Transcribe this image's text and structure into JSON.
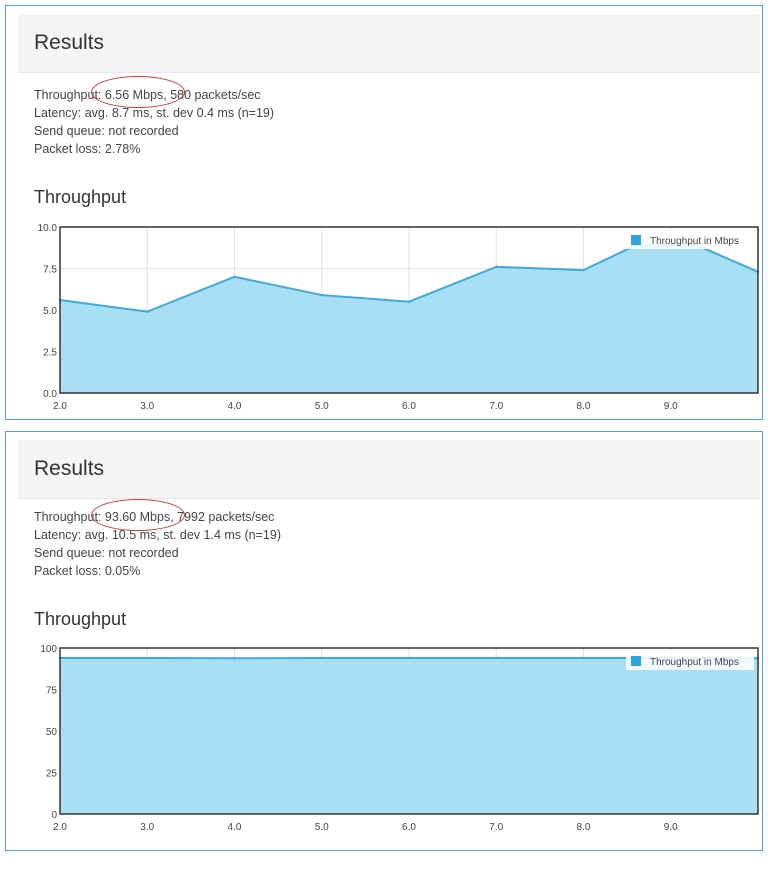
{
  "panels": [
    {
      "title": "Results",
      "stats": {
        "throughput": "Throughput: 6.56 Mbps, 580 packets/sec",
        "latency": "Latency: avg. 8.7 ms, st. dev 0.4 ms (n=19)",
        "send_queue": "Send queue: not recorded",
        "packet_loss": "Packet loss: 2.78%"
      },
      "chart_title": "Throughput"
    },
    {
      "title": "Results",
      "stats": {
        "throughput": "Throughput: 93.60 Mbps, 7992 packets/sec",
        "latency": "Latency: avg. 10.5 ms, st. dev 1.4 ms (n=19)",
        "send_queue": "Send queue: not recorded",
        "packet_loss": "Packet loss: 0.05%"
      },
      "chart_title": "Throughput"
    }
  ],
  "colors": {
    "fill": "#a8dff5",
    "line": "#3fa9d9",
    "legend": "#2aa6dc",
    "border": "#4aa8d8",
    "annotation": "#d23a3a"
  },
  "chart_data": [
    {
      "type": "area",
      "series": [
        {
          "name": "Throughput in Mbps",
          "x": [
            2.0,
            3.0,
            4.0,
            5.0,
            6.0,
            7.0,
            8.0,
            8.6,
            9.3,
            10.0
          ],
          "values": [
            5.6,
            4.9,
            7.0,
            5.9,
            5.5,
            7.6,
            7.4,
            8.9,
            8.9,
            7.3
          ]
        }
      ],
      "xlim": [
        2.0,
        10.0
      ],
      "ylim": [
        0,
        10
      ],
      "x_ticks": [
        "2.0",
        "3.0",
        "4.0",
        "5.0",
        "6.0",
        "7.0",
        "8.0",
        "9.0"
      ],
      "y_ticks": [
        "0.0",
        "2.5",
        "5.0",
        "7.5",
        "10.0"
      ],
      "grid": true,
      "legend": "top-right"
    },
    {
      "type": "area",
      "series": [
        {
          "name": "Throughput in Mbps",
          "x": [
            2.0,
            3.0,
            4.0,
            5.0,
            6.0,
            7.0,
            8.0,
            9.0,
            10.0
          ],
          "values": [
            94,
            94,
            93.8,
            94,
            94,
            94,
            94,
            94,
            93.8
          ]
        }
      ],
      "xlim": [
        2.0,
        10.0
      ],
      "ylim": [
        0,
        100
      ],
      "x_ticks": [
        "2.0",
        "3.0",
        "4.0",
        "5.0",
        "6.0",
        "7.0",
        "8.0",
        "9.0"
      ],
      "y_ticks": [
        "0",
        "25",
        "50",
        "75",
        "100"
      ],
      "grid": true,
      "legend": "top-right"
    }
  ]
}
